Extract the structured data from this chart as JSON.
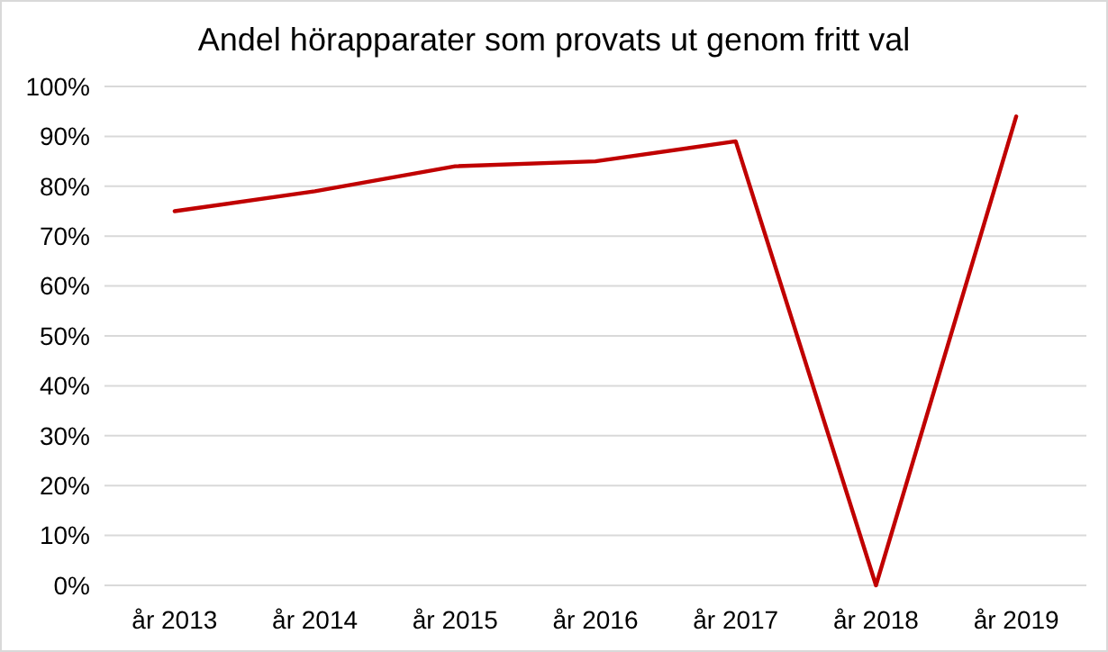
{
  "chart_data": {
    "type": "line",
    "title": "Andel hörapparater som provats ut genom fritt val",
    "categories": [
      "år 2013",
      "år 2014",
      "år 2015",
      "år 2016",
      "år 2017",
      "år 2018",
      "år 2019"
    ],
    "series": [
      {
        "color": "#c00000",
        "values": [
          75,
          79,
          84,
          85,
          89,
          0,
          94
        ]
      }
    ],
    "ylim": [
      0,
      100
    ],
    "yticks": [
      {
        "value": 0,
        "label": "0%"
      },
      {
        "value": 10,
        "label": "10%"
      },
      {
        "value": 20,
        "label": "20%"
      },
      {
        "value": 30,
        "label": "30%"
      },
      {
        "value": 40,
        "label": "40%"
      },
      {
        "value": 50,
        "label": "50%"
      },
      {
        "value": 60,
        "label": "60%"
      },
      {
        "value": 70,
        "label": "70%"
      },
      {
        "value": 80,
        "label": "80%"
      },
      {
        "value": 90,
        "label": "90%"
      },
      {
        "value": 100,
        "label": "100%"
      }
    ],
    "grid": "y",
    "marker": "none",
    "line_style": "solid"
  }
}
